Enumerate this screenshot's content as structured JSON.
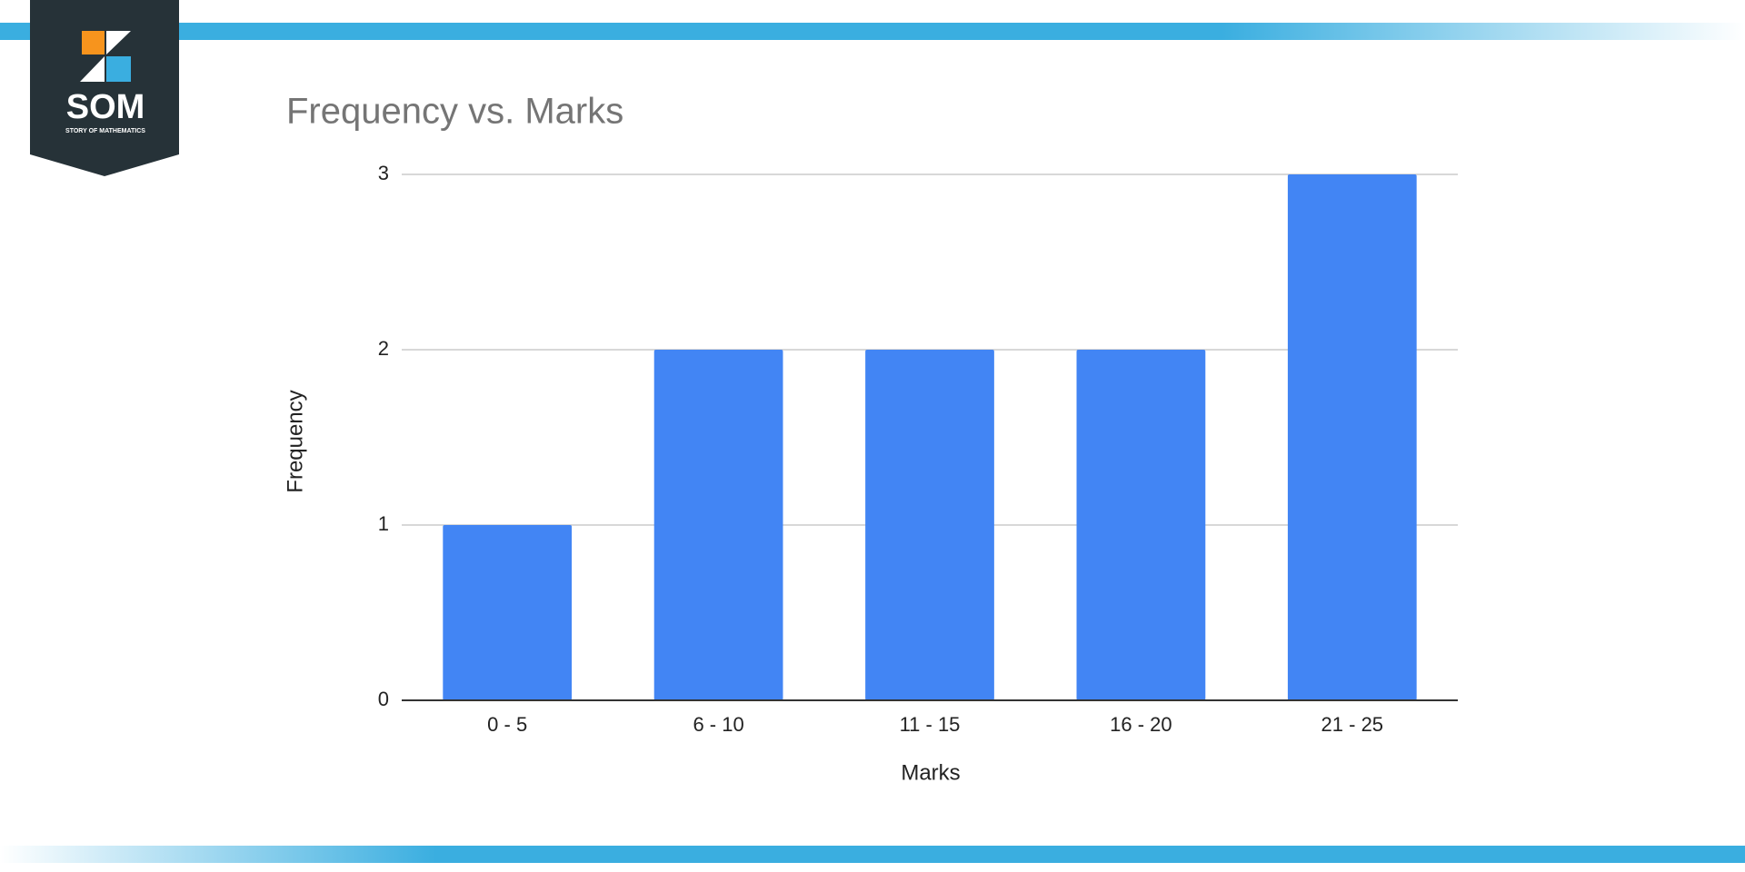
{
  "logo": {
    "title": "SOM",
    "subtitle": "STORY OF MATHEMATICS"
  },
  "chart_data": {
    "type": "bar",
    "title": "Frequency vs. Marks",
    "x_label": "Marks",
    "y_label": "Frequency",
    "categories": [
      "0 - 5",
      "6 - 10",
      "11 - 15",
      "16 - 20",
      "21 - 25"
    ],
    "values": [
      1,
      2,
      2,
      2,
      3
    ],
    "color": "#4285f4",
    "ylim": [
      0,
      3
    ],
    "yticks": [
      0,
      1,
      2,
      3
    ],
    "grid": true
  }
}
